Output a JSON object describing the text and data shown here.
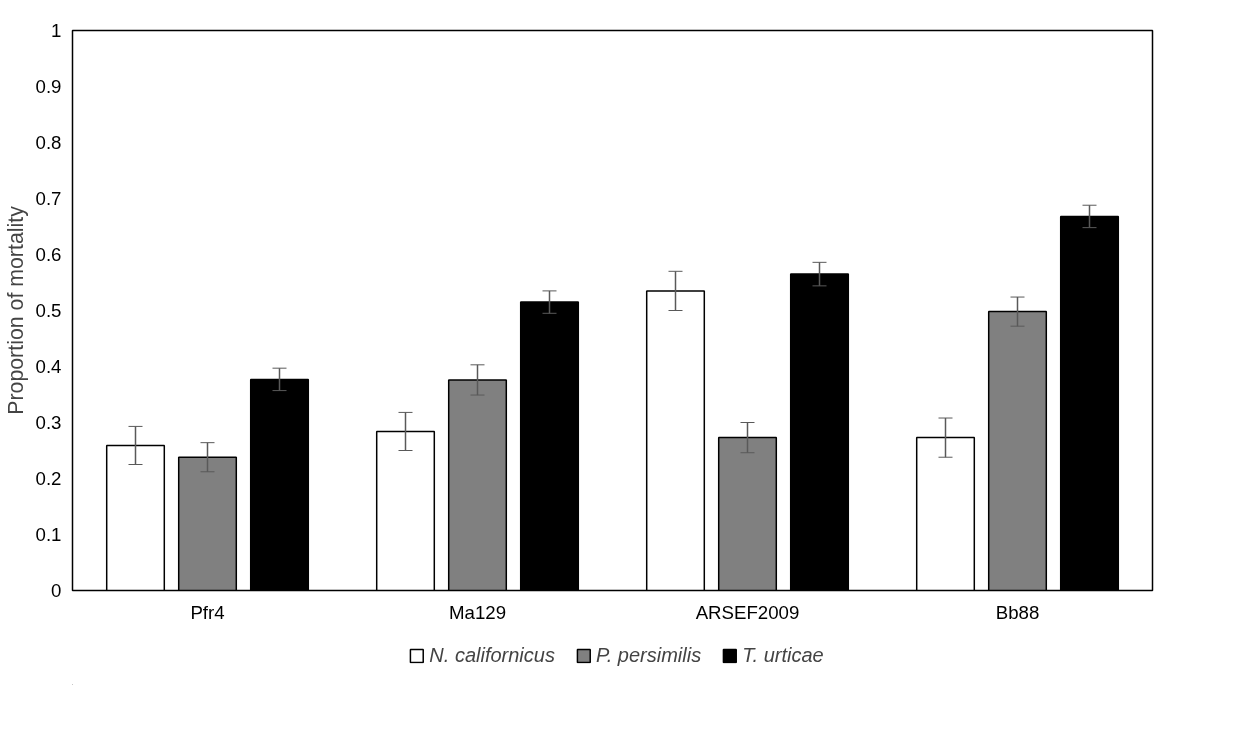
{
  "chart_data": {
    "type": "bar",
    "ylabel": "Proportion of mortality",
    "categories": [
      "Pfr4",
      "Ma129",
      "ARSEF2009",
      "Bb88"
    ],
    "series": [
      {
        "name": "N. californicus",
        "color": "#ffffff",
        "values": [
          0.259,
          0.284,
          0.535,
          0.273
        ],
        "errors": [
          0.034,
          0.034,
          0.035,
          0.035
        ]
      },
      {
        "name": "P. persimilis",
        "color": "#808080",
        "values": [
          0.238,
          0.376,
          0.273,
          0.498
        ],
        "errors": [
          0.026,
          0.027,
          0.027,
          0.026
        ]
      },
      {
        "name": "T. urticae",
        "color": "#000000",
        "values": [
          0.377,
          0.515,
          0.565,
          0.668
        ],
        "errors": [
          0.02,
          0.02,
          0.021,
          0.02
        ]
      }
    ],
    "ylim": [
      0,
      1
    ],
    "yticks": [
      0,
      0.1,
      0.2,
      0.3,
      0.4,
      0.5,
      0.6,
      0.7,
      0.8,
      0.9,
      1
    ],
    "grid": false,
    "legend": "bottom"
  }
}
